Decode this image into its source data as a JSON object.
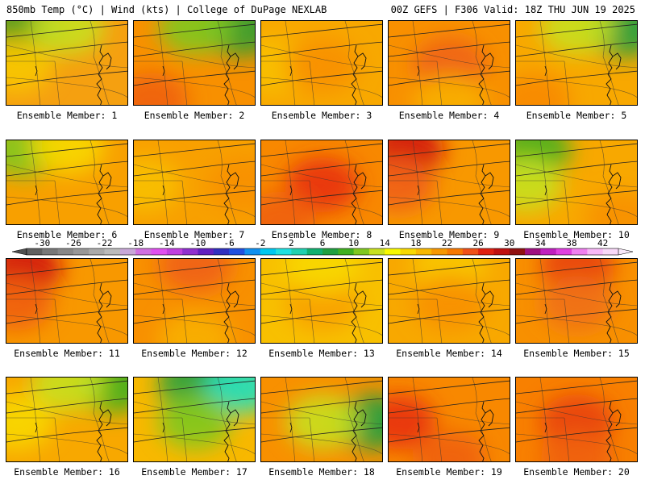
{
  "header": {
    "left": "850mb Temp (°C) | Wind (kts) | College of DuPage NEXLAB",
    "right": "00Z GEFS | F306 Valid: 18Z THU JUN 19 2025"
  },
  "colorbar": {
    "ticks": [
      "-30",
      "-26",
      "-22",
      "-18",
      "-14",
      "-10",
      "-6",
      "-2",
      "2",
      "6",
      "10",
      "14",
      "18",
      "22",
      "26",
      "30",
      "34",
      "38",
      "42"
    ],
    "colors": [
      "#606060",
      "#787878",
      "#888888",
      "#989898",
      "#aaaaaa",
      "#bbbbbb",
      "#c9a8d8",
      "#d070e0",
      "#e050f0",
      "#c040e0",
      "#9030d0",
      "#6020c0",
      "#3030c0",
      "#2050e0",
      "#1090f0",
      "#00c8f0",
      "#20e0e0",
      "#20d0b0",
      "#10b070",
      "#20a040",
      "#40b020",
      "#80c820",
      "#c8e020",
      "#f8f800",
      "#f8d800",
      "#f8b800",
      "#f89800",
      "#f87800",
      "#f05018",
      "#e02010",
      "#c01010",
      "#901010",
      "#a01080",
      "#c020c0",
      "#e040e0",
      "#f080f0",
      "#f8b8f8",
      "#f8d8f8"
    ]
  },
  "members": [
    {
      "label": "Ensemble Member: 1",
      "base": "#f5a010",
      "tints": [
        {
          "color": "#3fa020",
          "region": "nw"
        },
        {
          "color": "#c8e020",
          "region": "n"
        },
        {
          "color": "#f8c800",
          "region": "w"
        }
      ]
    },
    {
      "label": "Ensemble Member: 2",
      "base": "#f89000",
      "tints": [
        {
          "color": "#30a030",
          "region": "ne"
        },
        {
          "color": "#80c820",
          "region": "n"
        },
        {
          "color": "#f06010",
          "region": "sw"
        }
      ]
    },
    {
      "label": "Ensemble Member: 3",
      "base": "#f8a800",
      "tints": [
        {
          "color": "#f8c000",
          "region": "w"
        },
        {
          "color": "#f89000",
          "region": "c"
        }
      ]
    },
    {
      "label": "Ensemble Member: 4",
      "base": "#f89000",
      "tints": [
        {
          "color": "#f06018",
          "region": "c"
        },
        {
          "color": "#f8b000",
          "region": "s"
        }
      ]
    },
    {
      "label": "Ensemble Member: 5",
      "base": "#f8a800",
      "tints": [
        {
          "color": "#20a040",
          "region": "ne"
        },
        {
          "color": "#c8e020",
          "region": "n"
        },
        {
          "color": "#f88800",
          "region": "sw"
        }
      ]
    },
    {
      "label": "Ensemble Member: 6",
      "base": "#f8a000",
      "tints": [
        {
          "color": "#80c820",
          "region": "nw"
        },
        {
          "color": "#f8d800",
          "region": "n"
        }
      ]
    },
    {
      "label": "Ensemble Member: 7",
      "base": "#f8a000",
      "tints": [
        {
          "color": "#f8c000",
          "region": "w"
        },
        {
          "color": "#f89000",
          "region": "e"
        }
      ]
    },
    {
      "label": "Ensemble Member: 8",
      "base": "#f88800",
      "tints": [
        {
          "color": "#e83010",
          "region": "c"
        },
        {
          "color": "#f06010",
          "region": "sw"
        }
      ]
    },
    {
      "label": "Ensemble Member: 9",
      "base": "#f89800",
      "tints": [
        {
          "color": "#d01010",
          "region": "nw"
        },
        {
          "color": "#f06018",
          "region": "w"
        }
      ]
    },
    {
      "label": "Ensemble Member: 10",
      "base": "#f8a800",
      "tints": [
        {
          "color": "#40b020",
          "region": "nw"
        },
        {
          "color": "#c8e020",
          "region": "w"
        },
        {
          "color": "#f89000",
          "region": "se"
        }
      ]
    },
    {
      "label": "Ensemble Member: 11",
      "base": "#f89800",
      "tints": [
        {
          "color": "#d01010",
          "region": "nw"
        },
        {
          "color": "#f06010",
          "region": "w"
        }
      ]
    },
    {
      "label": "Ensemble Member: 12",
      "base": "#f89000",
      "tints": [
        {
          "color": "#f06018",
          "region": "n"
        },
        {
          "color": "#f8b000",
          "region": "s"
        }
      ]
    },
    {
      "label": "Ensemble Member: 13",
      "base": "#f8c000",
      "tints": [
        {
          "color": "#f8a000",
          "region": "c"
        },
        {
          "color": "#f8d800",
          "region": "n"
        }
      ]
    },
    {
      "label": "Ensemble Member: 14",
      "base": "#f8a800",
      "tints": [
        {
          "color": "#f8c800",
          "region": "n"
        },
        {
          "color": "#f89000",
          "region": "c"
        }
      ]
    },
    {
      "label": "Ensemble Member: 15",
      "base": "#f89000",
      "tints": [
        {
          "color": "#e84010",
          "region": "n"
        },
        {
          "color": "#f07018",
          "region": "c"
        }
      ]
    },
    {
      "label": "Ensemble Member: 16",
      "base": "#f8a800",
      "tints": [
        {
          "color": "#40b020",
          "region": "ne"
        },
        {
          "color": "#c8e020",
          "region": "n"
        },
        {
          "color": "#f8d800",
          "region": "w"
        }
      ]
    },
    {
      "label": "Ensemble Member: 17",
      "base": "#f8b800",
      "tints": [
        {
          "color": "#20a040",
          "region": "n"
        },
        {
          "color": "#20e0c0",
          "region": "ne"
        },
        {
          "color": "#80c820",
          "region": "c"
        }
      ]
    },
    {
      "label": "Ensemble Member: 18",
      "base": "#f89000",
      "tints": [
        {
          "color": "#20a040",
          "region": "e"
        },
        {
          "color": "#c8e020",
          "region": "c"
        }
      ]
    },
    {
      "label": "Ensemble Member: 19",
      "base": "#f88800",
      "tints": [
        {
          "color": "#e83010",
          "region": "w"
        },
        {
          "color": "#f06010",
          "region": "s"
        }
      ]
    },
    {
      "label": "Ensemble Member: 20",
      "base": "#f88000",
      "tints": [
        {
          "color": "#e84010",
          "region": "c"
        },
        {
          "color": "#f06010",
          "region": "s"
        }
      ]
    }
  ]
}
